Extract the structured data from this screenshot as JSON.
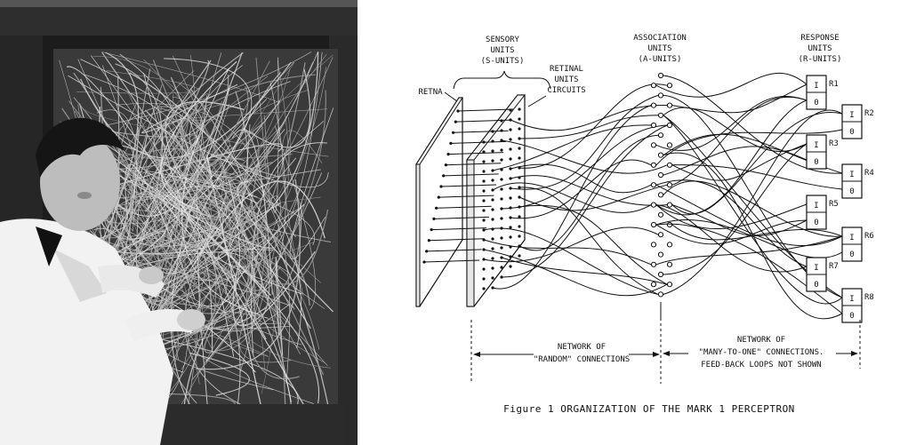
{
  "figure": {
    "caption": "Figure 1  ORGANIZATION OF THE MARK 1 PERCEPTRON"
  },
  "labels": {
    "sensory_line1": "SENSORY",
    "sensory_line2": "UNITS",
    "sensory_line3": "(S-UNITS)",
    "retinal_line1": "RETINAL",
    "retinal_line2": "UNITS",
    "retinal_line3": "CIRCUITS",
    "retina": "RETNA",
    "association_line1": "ASSOCIATION",
    "association_line2": "UNITS",
    "association_line3": "(A-UNITS)",
    "response_line1": "RESPONSE",
    "response_line2": "UNITS",
    "response_line3": "(R-UNITS)",
    "network_random_line1": "NETWORK OF",
    "network_random_line2": "\"RANDOM\" CONNECTIONS",
    "network_many_line1": "NETWORK OF",
    "network_many_line2": "\"MANY-TO-ONE\" CONNECTIONS.",
    "network_many_line3": "FEED-BACK LOOPS NOT SHOWN"
  },
  "response_units": [
    {
      "name": "R1",
      "top": "I",
      "bottom": "0"
    },
    {
      "name": "R2",
      "top": "I",
      "bottom": "0"
    },
    {
      "name": "R3",
      "top": "I",
      "bottom": "0"
    },
    {
      "name": "R4",
      "top": "I",
      "bottom": "0"
    },
    {
      "name": "R5",
      "top": "I",
      "bottom": "0"
    },
    {
      "name": "R6",
      "top": "I",
      "bottom": "0"
    },
    {
      "name": "R7",
      "top": "I",
      "bottom": "0"
    },
    {
      "name": "R8",
      "top": "I",
      "bottom": "0"
    }
  ],
  "colors": {
    "ink": "#111111",
    "paper": "#ffffff",
    "photo_bg": "#1a1a1a"
  }
}
